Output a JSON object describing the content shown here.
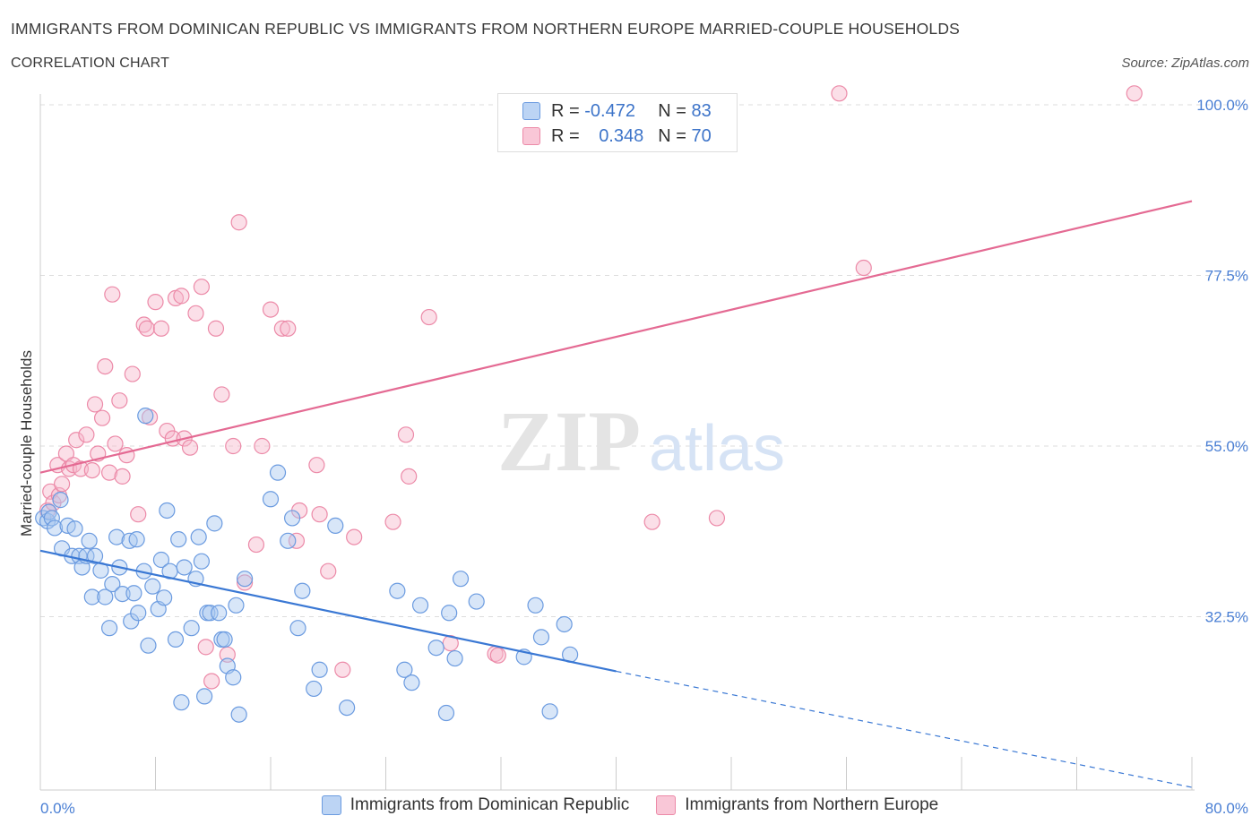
{
  "header": {
    "title": "IMMIGRANTS FROM DOMINICAN REPUBLIC VS IMMIGRANTS FROM NORTHERN EUROPE MARRIED-COUPLE HOUSEHOLDS",
    "subtitle": "CORRELATION CHART",
    "source": "Source: ZipAtlas.com"
  },
  "legend": {
    "rows": [
      {
        "r_label": "R =",
        "r_value": "-0.472",
        "n_label": "N =",
        "n_value": "83"
      },
      {
        "r_label": "R =",
        "r_value": "0.348",
        "n_label": "N =",
        "n_value": "70"
      }
    ],
    "bottom": [
      "Immigrants from Dominican Republic",
      "Immigrants from Northern Europe"
    ]
  },
  "watermark": {
    "zip": "ZIP",
    "atlas": "atlas"
  },
  "colors": {
    "blue_fill": "#a9c8f0",
    "blue_stroke": "#6b9be0",
    "blue_line": "#3a78d4",
    "pink_fill": "#f7b8cc",
    "pink_stroke": "#ec8aa8",
    "pink_line": "#e46a93",
    "grid": "#dddddd",
    "axis_label": "#4a7fd4"
  },
  "chart_data": {
    "type": "scatter",
    "title": "IMMIGRANTS FROM DOMINICAN REPUBLIC VS IMMIGRANTS FROM NORTHERN EUROPE MARRIED-COUPLE HOUSEHOLDS",
    "xlabel": "",
    "ylabel": "Married-couple Households",
    "xlim": [
      0,
      80
    ],
    "ylim": [
      10,
      101.5
    ],
    "x_tick_labels": [
      "0.0%",
      "80.0%"
    ],
    "y_ticks": [
      32.5,
      55.0,
      77.5,
      100.0
    ],
    "y_tick_labels": [
      "32.5%",
      "55.0%",
      "77.5%",
      "100.0%"
    ],
    "grid": true,
    "legend_position": "top-center",
    "series": [
      {
        "name": "Immigrants from Dominican Republic",
        "r": -0.472,
        "n": 83,
        "trend": {
          "x0": 0,
          "y0": 41.2,
          "x1": 40,
          "y1": 25.3,
          "dashed_to_x": 80,
          "dashed_to_y": 10
        },
        "points": [
          [
            0.2,
            45.5
          ],
          [
            0.5,
            45.1
          ],
          [
            0.6,
            46.3
          ],
          [
            0.8,
            45.5
          ],
          [
            1.0,
            44.2
          ],
          [
            1.4,
            47.9
          ],
          [
            1.5,
            41.5
          ],
          [
            1.9,
            44.5
          ],
          [
            2.2,
            40.5
          ],
          [
            2.4,
            44.1
          ],
          [
            2.7,
            40.5
          ],
          [
            2.9,
            39.0
          ],
          [
            3.2,
            40.5
          ],
          [
            3.4,
            42.5
          ],
          [
            3.6,
            35.1
          ],
          [
            3.8,
            40.5
          ],
          [
            4.2,
            38.6
          ],
          [
            4.5,
            35.1
          ],
          [
            4.8,
            31.0
          ],
          [
            5.0,
            36.8
          ],
          [
            5.3,
            43.0
          ],
          [
            5.5,
            39.0
          ],
          [
            5.7,
            35.5
          ],
          [
            6.2,
            42.5
          ],
          [
            6.3,
            31.9
          ],
          [
            6.5,
            35.6
          ],
          [
            6.7,
            42.7
          ],
          [
            6.8,
            33.0
          ],
          [
            7.2,
            38.5
          ],
          [
            7.3,
            59.0
          ],
          [
            7.5,
            28.7
          ],
          [
            7.8,
            36.5
          ],
          [
            8.2,
            33.5
          ],
          [
            8.4,
            40.0
          ],
          [
            8.6,
            35.0
          ],
          [
            8.8,
            46.5
          ],
          [
            9.0,
            38.5
          ],
          [
            9.4,
            29.5
          ],
          [
            9.6,
            42.7
          ],
          [
            9.8,
            21.2
          ],
          [
            10.0,
            39.0
          ],
          [
            10.5,
            31.0
          ],
          [
            10.8,
            37.5
          ],
          [
            11.0,
            43.0
          ],
          [
            11.2,
            39.8
          ],
          [
            11.4,
            22.0
          ],
          [
            11.6,
            33.0
          ],
          [
            11.8,
            33.0
          ],
          [
            12.1,
            44.8
          ],
          [
            12.4,
            33.0
          ],
          [
            12.6,
            29.5
          ],
          [
            12.8,
            29.5
          ],
          [
            13.0,
            26.0
          ],
          [
            13.4,
            24.5
          ],
          [
            13.6,
            34.0
          ],
          [
            13.8,
            19.6
          ],
          [
            14.2,
            37.5
          ],
          [
            16.0,
            48.0
          ],
          [
            16.5,
            51.5
          ],
          [
            17.2,
            42.5
          ],
          [
            17.5,
            45.5
          ],
          [
            17.9,
            31.0
          ],
          [
            18.2,
            35.9
          ],
          [
            19.0,
            23.0
          ],
          [
            19.4,
            25.5
          ],
          [
            20.5,
            44.5
          ],
          [
            21.3,
            20.5
          ],
          [
            24.8,
            35.9
          ],
          [
            25.3,
            25.5
          ],
          [
            25.8,
            23.8
          ],
          [
            26.4,
            34.0
          ],
          [
            27.5,
            28.4
          ],
          [
            28.2,
            19.8
          ],
          [
            28.4,
            33.0
          ],
          [
            28.8,
            27.0
          ],
          [
            29.2,
            37.5
          ],
          [
            30.3,
            34.5
          ],
          [
            33.6,
            27.2
          ],
          [
            34.4,
            34.0
          ],
          [
            34.8,
            29.8
          ],
          [
            35.4,
            20.0
          ],
          [
            36.4,
            31.5
          ],
          [
            36.8,
            27.5
          ]
        ]
      },
      {
        "name": "Immigrants from Northern Europe",
        "r": 0.348,
        "n": 70,
        "trend": {
          "x0": 0,
          "y0": 51.5,
          "x1": 80,
          "y1": 87.3
        },
        "points": [
          [
            0.5,
            46.5
          ],
          [
            0.7,
            49.0
          ],
          [
            0.9,
            47.5
          ],
          [
            1.2,
            52.5
          ],
          [
            1.3,
            48.5
          ],
          [
            1.5,
            50.0
          ],
          [
            1.8,
            54.0
          ],
          [
            2.0,
            52.0
          ],
          [
            2.3,
            52.5
          ],
          [
            2.5,
            55.8
          ],
          [
            2.8,
            52.0
          ],
          [
            3.2,
            56.5
          ],
          [
            3.6,
            51.8
          ],
          [
            3.8,
            60.5
          ],
          [
            4.0,
            54.0
          ],
          [
            4.3,
            58.7
          ],
          [
            4.5,
            65.5
          ],
          [
            4.8,
            51.5
          ],
          [
            5.0,
            75.0
          ],
          [
            5.2,
            55.3
          ],
          [
            5.5,
            61.0
          ],
          [
            5.7,
            51.0
          ],
          [
            6.0,
            53.8
          ],
          [
            6.4,
            64.5
          ],
          [
            6.8,
            46.0
          ],
          [
            7.2,
            71.0
          ],
          [
            7.4,
            70.5
          ],
          [
            7.6,
            58.8
          ],
          [
            8.0,
            74.0
          ],
          [
            8.4,
            70.5
          ],
          [
            8.8,
            57.0
          ],
          [
            9.2,
            56.0
          ],
          [
            9.4,
            74.5
          ],
          [
            9.8,
            74.8
          ],
          [
            10.0,
            56.0
          ],
          [
            10.4,
            54.8
          ],
          [
            10.8,
            72.5
          ],
          [
            11.2,
            76.0
          ],
          [
            11.5,
            28.5
          ],
          [
            11.9,
            24.0
          ],
          [
            12.2,
            70.5
          ],
          [
            12.6,
            61.8
          ],
          [
            13.0,
            27.5
          ],
          [
            13.4,
            55.0
          ],
          [
            13.8,
            84.5
          ],
          [
            14.2,
            37.0
          ],
          [
            15.0,
            42.0
          ],
          [
            15.4,
            55.0
          ],
          [
            16.0,
            73.0
          ],
          [
            16.8,
            70.5
          ],
          [
            17.2,
            70.5
          ],
          [
            17.8,
            42.5
          ],
          [
            18.0,
            46.5
          ],
          [
            19.2,
            52.5
          ],
          [
            19.4,
            46.0
          ],
          [
            20.0,
            38.5
          ],
          [
            21.0,
            25.5
          ],
          [
            21.8,
            43.0
          ],
          [
            24.5,
            45.0
          ],
          [
            25.4,
            56.5
          ],
          [
            25.6,
            51.0
          ],
          [
            27.0,
            72.0
          ],
          [
            28.5,
            29.0
          ],
          [
            31.6,
            27.6
          ],
          [
            31.8,
            27.4
          ],
          [
            42.5,
            45.0
          ],
          [
            47.0,
            45.5
          ],
          [
            57.2,
            78.5
          ],
          [
            55.5,
            101.5
          ],
          [
            76.0,
            101.5
          ]
        ]
      }
    ]
  }
}
